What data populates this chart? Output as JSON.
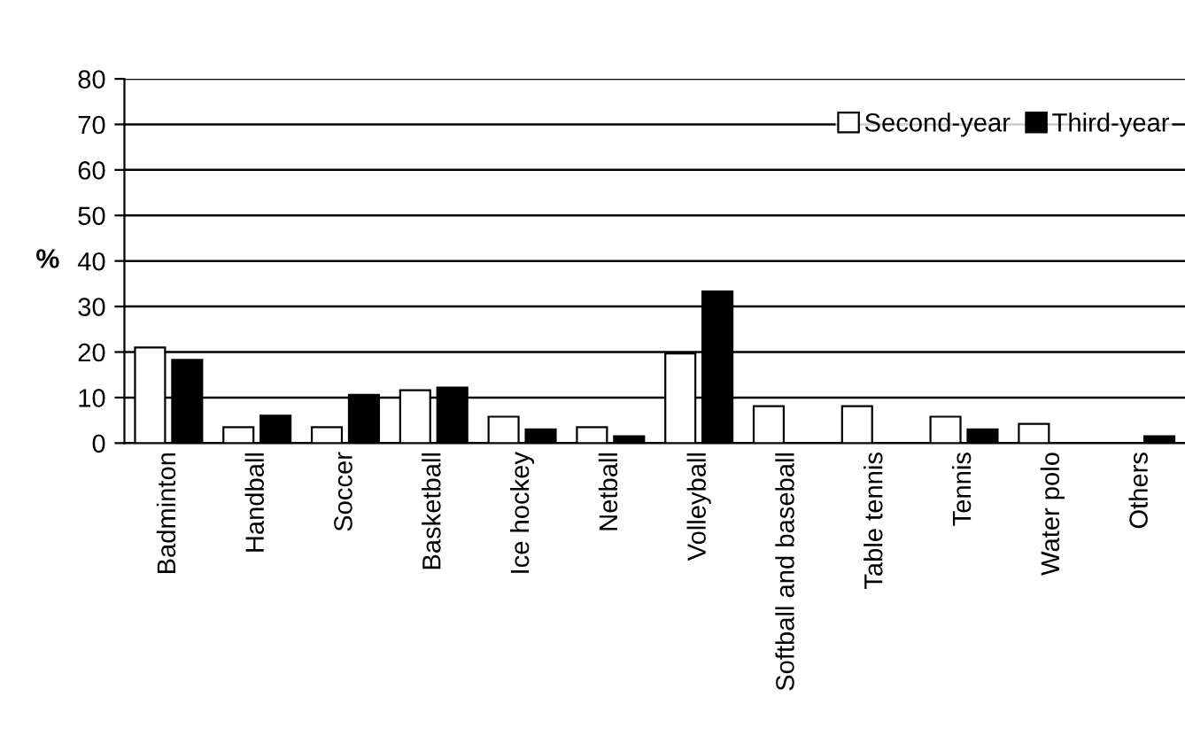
{
  "chart_data": {
    "type": "bar",
    "ylabel": "%",
    "categories": [
      "Badminton",
      "Handball",
      "Soccer",
      "Basketball",
      "Ice hockey",
      "Netball",
      "Volleyball",
      "Softball and baseball",
      "Table tennis",
      "Tennis",
      "Water polo",
      "Others"
    ],
    "series": [
      {
        "name": "Second-year",
        "color": "#ffffff",
        "values": [
          21,
          3.5,
          3.5,
          11.6,
          5.8,
          3.5,
          19.7,
          8.1,
          8.1,
          5.8,
          4.2,
          null
        ]
      },
      {
        "name": "Third-year",
        "color": "#000000",
        "values": [
          18.3,
          6,
          10.6,
          12.2,
          3,
          1.5,
          33.3,
          null,
          null,
          3,
          null,
          1.5
        ]
      }
    ],
    "ylim": [
      0,
      80
    ],
    "yticks": [
      0,
      10,
      20,
      30,
      40,
      50,
      60,
      70,
      80
    ],
    "grid": "y",
    "legend": "top right"
  }
}
